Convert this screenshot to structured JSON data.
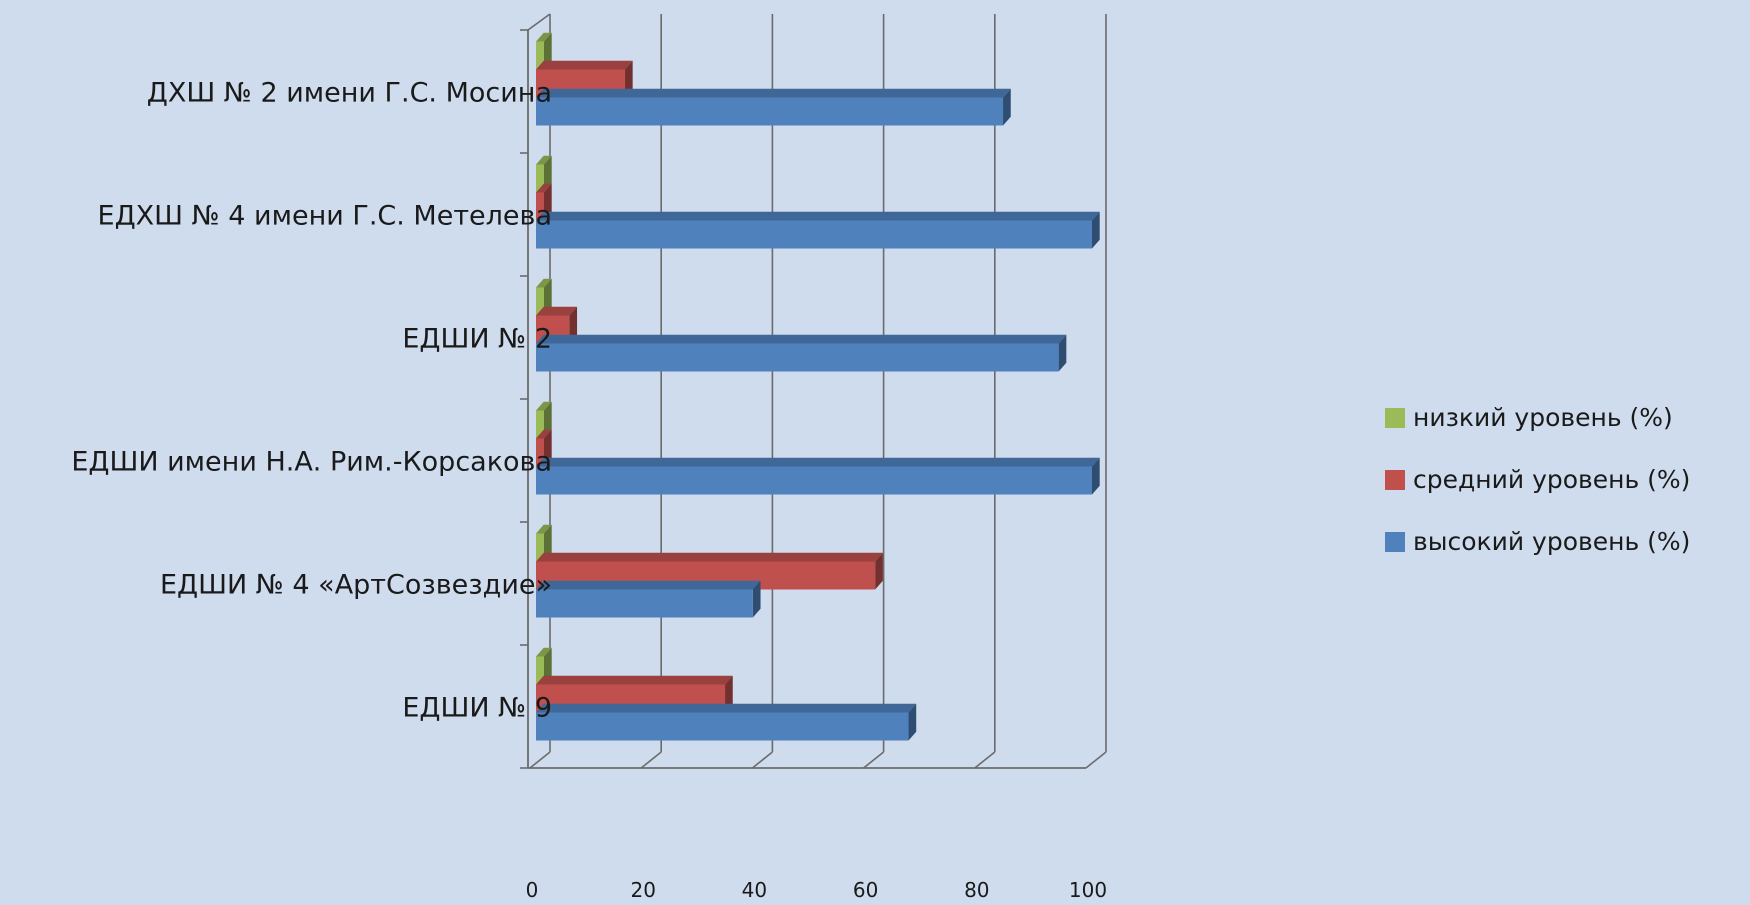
{
  "chart_data": {
    "type": "bar",
    "orientation": "horizontal",
    "style": "3d-clustered",
    "categories": [
      "ДХШ № 2 имени Г.С. Мосина",
      "ЕДХШ № 4 имени Г.С. Метелева",
      "ЕДШИ № 2",
      "ЕДШИ имени Н.А. Рим.-Корсакова",
      "ЕДШИ № 4 «АртСозвездие»",
      "ЕДШИ № 9"
    ],
    "series": [
      {
        "name": "низкий уровень (%)",
        "color": "#9bbb59",
        "values": [
          0,
          0,
          0,
          0,
          0,
          0
        ]
      },
      {
        "name": "средний уровень (%)",
        "color": "#c0504d",
        "values": [
          16,
          0,
          6,
          0,
          61,
          34
        ]
      },
      {
        "name": "высокий уровень (%)",
        "color": "#4f81bd",
        "values": [
          84,
          100,
          94,
          100,
          39,
          67
        ]
      }
    ],
    "x_ticks": [
      "0",
      "20",
      "40",
      "60",
      "80",
      "100"
    ],
    "xlim": [
      0,
      100
    ],
    "grid": "vertical",
    "legend_position": "right"
  }
}
